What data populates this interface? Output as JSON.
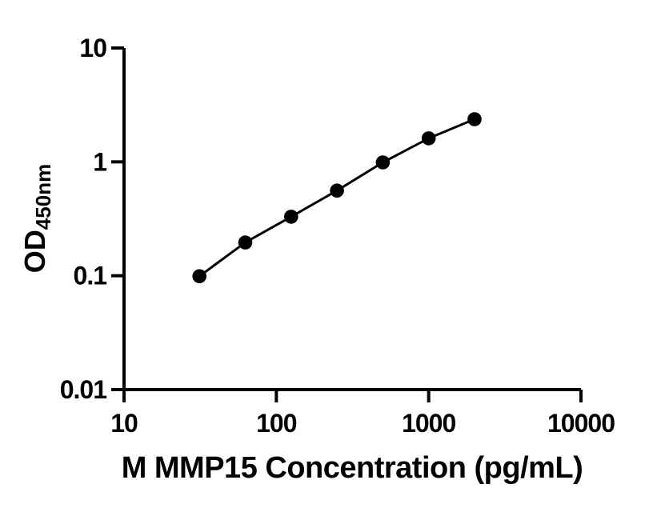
{
  "figure": {
    "background": "#ffffff"
  },
  "chart_data": {
    "type": "scatter",
    "subtype": "standard-curve-line",
    "title": "",
    "xlabel": "M MMP15 Concentration (pg/mL)",
    "ylabel_main": "OD",
    "ylabel_sub": "450nm",
    "x": [
      31.25,
      62.5,
      125,
      250,
      500,
      1000,
      2000
    ],
    "y": [
      0.099,
      0.196,
      0.33,
      0.56,
      0.99,
      1.61,
      2.37
    ],
    "xscale": "log",
    "yscale": "log",
    "xlim": [
      10,
      10000
    ],
    "ylim": [
      0.01,
      10
    ],
    "x_ticks": {
      "values": [
        10,
        100,
        1000,
        10000
      ],
      "labels": [
        "10",
        "100",
        "1000",
        "10000"
      ]
    },
    "y_ticks": {
      "values": [
        10,
        1,
        0.1,
        0.01
      ],
      "labels": [
        "10",
        "1",
        "0.1",
        "0.01"
      ]
    },
    "grid": "off",
    "legend": "none",
    "line_color": "#000000",
    "marker_color": "#000000",
    "axis_color": "#000000"
  }
}
